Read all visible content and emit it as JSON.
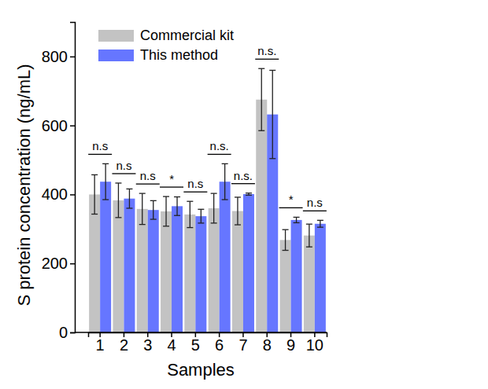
{
  "chart_data": {
    "type": "bar",
    "x_label": "Samples",
    "y_label": "S protein concentration (ng/mL)",
    "categories": [
      "1",
      "2",
      "3",
      "4",
      "5",
      "6",
      "7",
      "8",
      "9",
      "10"
    ],
    "series": [
      {
        "name": "Commercial kit",
        "color": "#c3c3c3",
        "values": [
          400,
          383,
          358,
          351,
          342,
          360,
          352,
          675,
          268,
          281
        ],
        "errors": [
          57,
          50,
          45,
          43,
          38,
          43,
          40,
          90,
          30,
          33
        ]
      },
      {
        "name": "This method",
        "color": "#6676ff",
        "values": [
          437,
          388,
          355,
          366,
          337,
          437,
          401,
          632,
          326,
          315
        ],
        "errors": [
          52,
          28,
          27,
          27,
          20,
          52,
          3,
          128,
          8,
          10
        ]
      }
    ],
    "annotations": [
      "n.s",
      "n.s",
      "n.s",
      "*",
      "n.s",
      "n.s.",
      "n.s.",
      "n.s.",
      "*",
      "n.s"
    ],
    "ylim": [
      0,
      900
    ],
    "yticks": [
      0,
      200,
      400,
      600,
      800
    ],
    "legend": "upper-left"
  }
}
